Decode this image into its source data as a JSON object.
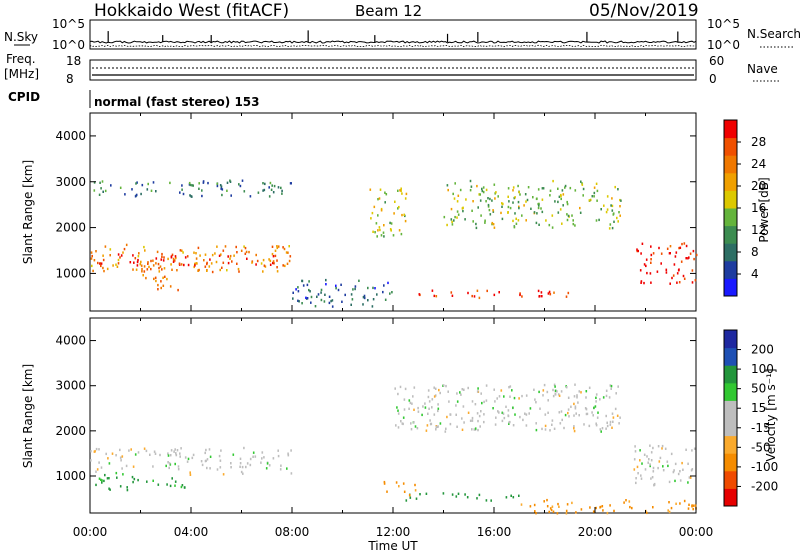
{
  "header": {
    "station": "Hokkaido West (fitACF)",
    "beam": "Beam 12",
    "date": "05/Nov/2019"
  },
  "params": {
    "nsky_label": "N.Sky",
    "nsky_ticks": [
      "10^5",
      "10^0"
    ],
    "nsearch_label": "N.Search",
    "nsearch_ticks": [
      "10^5",
      "10^0"
    ],
    "freq_label": "Freq.",
    "freq_unit": "[MHz]",
    "freq_ticks": [
      "18",
      "8"
    ],
    "nave_label": "Nave",
    "nave_ticks": [
      "60",
      "0"
    ],
    "cpid_label": "CPID",
    "cpid_text": "normal (fast stereo) 153"
  },
  "colors": {
    "power": [
      "#1919ff",
      "#1e3ca0",
      "#2d6e64",
      "#3c8c50",
      "#64b43c",
      "#dcc800",
      "#f0a000",
      "#f07800",
      "#f05000",
      "#f00000"
    ],
    "velocity": [
      "#e60000",
      "#f04b00",
      "#f58c00",
      "#faaa2d",
      "#bebebe",
      "#bebebe",
      "#32c832",
      "#23963c",
      "#1e50b4",
      "#1e28a0"
    ]
  },
  "chart_data": [
    {
      "type": "heatmap",
      "name": "power",
      "ylabel": "Slant Range [km]",
      "ylim": [
        180,
        4500
      ],
      "xlim": [
        "00:00",
        "24:00"
      ],
      "yticks": [
        "1000",
        "2000",
        "3000",
        "4000"
      ],
      "colorbar_label": "Power [dB]",
      "colorbar_ticks": [
        "4",
        "8",
        "12",
        "16",
        "20",
        "24",
        "28"
      ],
      "colorbar_range": [
        0,
        30
      ],
      "regions": [
        {
          "x": [
            0.0,
            8.0
          ],
          "y": [
            1050,
            1650
          ],
          "value": 22
        },
        {
          "x": [
            0.0,
            8.0
          ],
          "y": [
            1200,
            1450
          ],
          "value": 28
        },
        {
          "x": [
            2.0,
            3.5
          ],
          "y": [
            650,
            1000
          ],
          "value": 24
        },
        {
          "x": [
            0.0,
            8.0
          ],
          "y": [
            2700,
            3050
          ],
          "value": 8
        },
        {
          "x": [
            8.0,
            12.0
          ],
          "y": [
            300,
            900
          ],
          "value": 6
        },
        {
          "x": [
            13.0,
            19.0
          ],
          "y": [
            480,
            650
          ],
          "value": 26
        },
        {
          "x": [
            14.0,
            21.0
          ],
          "y": [
            2000,
            3050
          ],
          "value": 14
        },
        {
          "x": [
            11.0,
            12.5
          ],
          "y": [
            1800,
            2900
          ],
          "value": 16
        },
        {
          "x": [
            21.5,
            24.0
          ],
          "y": [
            800,
            1700
          ],
          "value": 28
        }
      ]
    },
    {
      "type": "heatmap",
      "name": "velocity",
      "ylabel": "Slant Range [km]",
      "ylim": [
        180,
        4500
      ],
      "xlim": [
        "00:00",
        "24:00"
      ],
      "yticks": [
        "1000",
        "2000",
        "3000",
        "4000"
      ],
      "xticks": [
        "00:00",
        "04:00",
        "08:00",
        "12:00",
        "16:00",
        "20:00",
        "00:00"
      ],
      "xlabel": "Time UT",
      "colorbar_label": "Velocity [m s⁻¹]",
      "colorbar_ticks": [
        "200",
        "100",
        "50",
        "15",
        "-15",
        "-50",
        "-100",
        "-200"
      ],
      "regions": [
        {
          "x": [
            0.0,
            8.0
          ],
          "y": [
            1050,
            1650
          ],
          "value": 0
        },
        {
          "x": [
            0.0,
            4.0
          ],
          "y": [
            700,
            1050
          ],
          "value": 60
        },
        {
          "x": [
            12.0,
            17.0
          ],
          "y": [
            480,
            650
          ],
          "value": 70
        },
        {
          "x": [
            11.5,
            13.0
          ],
          "y": [
            600,
            900
          ],
          "value": -60
        },
        {
          "x": [
            12.0,
            21.0
          ],
          "y": [
            2000,
            3050
          ],
          "value": 0
        },
        {
          "x": [
            21.5,
            24.0
          ],
          "y": [
            800,
            1700
          ],
          "value": 0
        },
        {
          "x": [
            17.0,
            24.0
          ],
          "y": [
            200,
            500
          ],
          "value": -60
        }
      ]
    }
  ]
}
